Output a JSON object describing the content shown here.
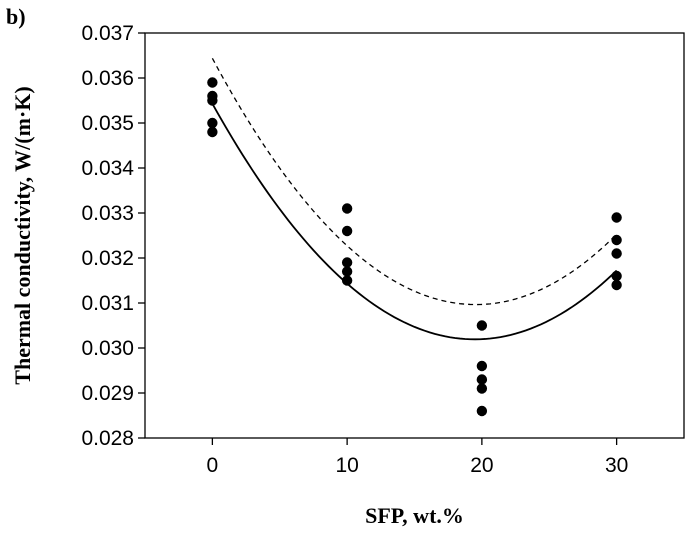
{
  "chart_data": {
    "type": "scatter",
    "panel_label": "b)",
    "xlabel": "SFP, wt.%",
    "ylabel": "Thermal conductivity, W/(m·K)",
    "xlim": [
      -5,
      35
    ],
    "ylim": [
      0.028,
      0.037
    ],
    "x_ticks": [
      0,
      10,
      20,
      30
    ],
    "x_tick_labels": [
      "0",
      "10",
      "20",
      "30"
    ],
    "y_ticks": [
      0.028,
      0.029,
      0.03,
      0.031,
      0.032,
      0.033,
      0.034,
      0.035,
      0.036,
      0.037
    ],
    "y_tick_labels": [
      "0.028",
      "0.029",
      "0.030",
      "0.031",
      "0.032",
      "0.033",
      "0.034",
      "0.035",
      "0.036",
      "0.037"
    ],
    "grid": false,
    "legend": "none",
    "points": [
      {
        "x": 0,
        "y": 0.0359
      },
      {
        "x": 0,
        "y": 0.0356
      },
      {
        "x": 0,
        "y": 0.0355
      },
      {
        "x": 0,
        "y": 0.035
      },
      {
        "x": 0,
        "y": 0.0348
      },
      {
        "x": 10,
        "y": 0.0331
      },
      {
        "x": 10,
        "y": 0.0326
      },
      {
        "x": 10,
        "y": 0.0319
      },
      {
        "x": 10,
        "y": 0.0317
      },
      {
        "x": 10,
        "y": 0.0315
      },
      {
        "x": 20,
        "y": 0.0305
      },
      {
        "x": 20,
        "y": 0.0296
      },
      {
        "x": 20,
        "y": 0.0293
      },
      {
        "x": 20,
        "y": 0.0291
      },
      {
        "x": 20,
        "y": 0.0286
      },
      {
        "x": 30,
        "y": 0.0329
      },
      {
        "x": 30,
        "y": 0.0324
      },
      {
        "x": 30,
        "y": 0.0321
      },
      {
        "x": 30,
        "y": 0.0316
      },
      {
        "x": 30,
        "y": 0.0314
      }
    ],
    "curves": [
      {
        "style": "solid",
        "x": [
          0,
          5,
          10,
          15,
          20,
          25,
          30
        ],
        "y": [
          0.03545,
          0.03305,
          0.03145,
          0.03045,
          0.0302,
          0.03065,
          0.0317
        ]
      },
      {
        "style": "dashed",
        "x": [
          0,
          5,
          10,
          15,
          20,
          25,
          30
        ],
        "y": [
          0.03645,
          0.03395,
          0.0323,
          0.0313,
          0.03095,
          0.03135,
          0.03255
        ]
      }
    ]
  }
}
